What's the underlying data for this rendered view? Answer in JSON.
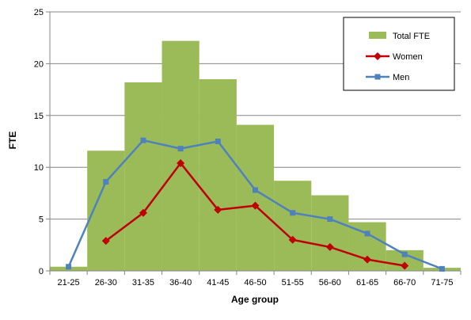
{
  "chart_data": {
    "type": "bar",
    "categories": [
      "21-25",
      "26-30",
      "31-35",
      "36-40",
      "41-45",
      "46-50",
      "51-55",
      "56-60",
      "61-65",
      "66-70",
      "71-75"
    ],
    "xlabel": "Age group",
    "ylabel": "FTE",
    "ylim": [
      0,
      25
    ],
    "yticks": [
      0,
      5,
      10,
      15,
      20,
      25
    ],
    "grid": true,
    "legend_position": "top-right",
    "series": [
      {
        "name": "Total FTE",
        "kind": "bar",
        "color": "#9bbb59",
        "values": [
          0.4,
          11.6,
          18.2,
          22.2,
          18.5,
          14.1,
          8.7,
          7.3,
          4.7,
          2.0,
          0.3
        ]
      },
      {
        "name": "Women",
        "kind": "line",
        "marker": "diamond",
        "color": "#c00000",
        "values": [
          null,
          2.9,
          5.6,
          10.4,
          5.9,
          6.3,
          3.0,
          2.3,
          1.1,
          0.5,
          null
        ]
      },
      {
        "name": "Men",
        "kind": "line",
        "marker": "square",
        "color": "#4f81bd",
        "values": [
          0.4,
          8.6,
          12.6,
          11.8,
          12.5,
          7.8,
          5.6,
          5.0,
          3.6,
          1.6,
          0.2
        ]
      }
    ]
  }
}
